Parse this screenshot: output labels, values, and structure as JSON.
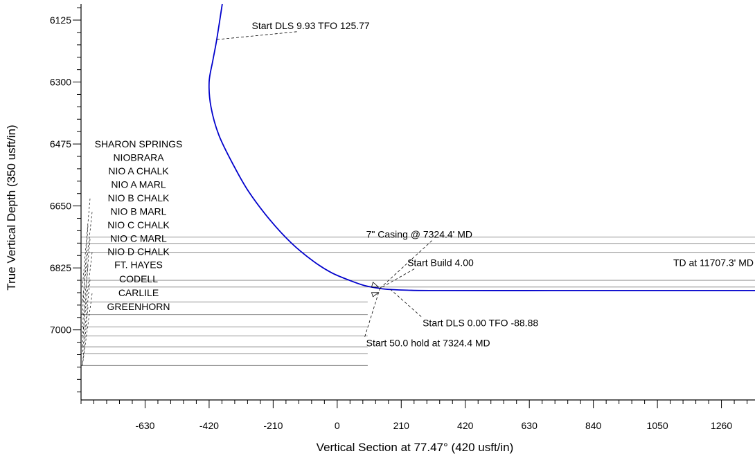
{
  "chart_data": {
    "type": "line",
    "xlabel": "Vertical Section at 77.47° (420 usft/in)",
    "ylabel": "True Vertical Depth (350 usft/in)",
    "xlim": [
      -840,
      1370
    ],
    "ylim": [
      7198,
      6080
    ],
    "x_ticks": [
      -630,
      -420,
      -210,
      0,
      210,
      420,
      630,
      840,
      1050,
      1260
    ],
    "y_ticks": [
      6125,
      6300,
      6475,
      6650,
      6825,
      7000
    ],
    "series": [
      {
        "color": "#0000cc",
        "x": [
          -377,
          -395,
          -408,
          -420,
          -414,
          -388,
          -340,
          -290,
          -220,
          -150,
          -80,
          -20,
          40,
          90,
          140,
          175,
          230,
          330,
          700,
          1000,
          1370
        ],
        "y": [
          6080,
          6180,
          6240,
          6300,
          6370,
          6450,
          6535,
          6610,
          6690,
          6755,
          6805,
          6838,
          6860,
          6875,
          6883,
          6886,
          6888,
          6889,
          6889,
          6889,
          6889
        ]
      }
    ],
    "formations": [
      {
        "name": "SHARON SPRINGS",
        "tvd": 6738,
        "x_end": 1370,
        "label_tvd": 6485
      },
      {
        "name": "NIOBRARA",
        "tvd": 6756,
        "x_end": 1370,
        "label_tvd": 6523
      },
      {
        "name": "NIO A CHALK",
        "tvd": 6781,
        "x_end": 1370,
        "label_tvd": 6561
      },
      {
        "name": "NIO A MARL",
        "tvd": 6860,
        "x_end": 1370,
        "label_tvd": 6599
      },
      {
        "name": "NIO B CHALK",
        "tvd": 6879,
        "x_end": 1370,
        "label_tvd": 6637
      },
      {
        "name": "NIO B MARL",
        "tvd": 6921,
        "x_end": 100,
        "label_tvd": 6675
      },
      {
        "name": "NIO C CHALK",
        "tvd": 6957,
        "x_end": 100,
        "label_tvd": 6713
      },
      {
        "name": "NIO C MARL",
        "tvd": 6992,
        "x_end": 100,
        "label_tvd": 6751
      },
      {
        "name": "NIO D CHALK",
        "tvd": 7017,
        "x_end": 100,
        "label_tvd": 6789
      },
      {
        "name": "FT.  HAYES",
        "tvd": 7048,
        "x_end": 100,
        "label_tvd": 6826
      },
      {
        "name": "CODELL",
        "tvd": 7067,
        "x_end": 100,
        "label_tvd": 6866
      },
      {
        "name": "CARLILE",
        "tvd": 7101,
        "x_end": 100,
        "label_tvd": 6905
      },
      {
        "name": "GREENHORN",
        "tvd": 7101,
        "x_end": 100,
        "label_tvd": 6944
      }
    ],
    "annotations": [
      {
        "text": "Start DLS 9.93 TFO 125.77",
        "text_x": -280,
        "text_y": 6150,
        "point_x": -395,
        "point_y": 6180
      },
      {
        "text": "7\" Casing @ 7324.4' MD",
        "text_x": 95,
        "text_y": 6740,
        "point_x": 140,
        "point_y": 6883
      },
      {
        "text": "Start Build 4.00",
        "text_x": 230,
        "text_y": 6820,
        "point_x": 140,
        "point_y": 6883
      },
      {
        "text": "TD at 11707.3' MD",
        "text_x": 1080,
        "text_y": 6820,
        "point_x": 1370,
        "point_y": 6889
      },
      {
        "text": "Start DLS 0.00 TFO -88.88",
        "text_x": 280,
        "text_y": 6990,
        "point_x": 175,
        "point_y": 6886
      },
      {
        "text": "Start 50.0 hold at 7324.4 MD",
        "text_x": 95,
        "text_y": 7047,
        "point_x": 140,
        "point_y": 6883
      }
    ]
  }
}
